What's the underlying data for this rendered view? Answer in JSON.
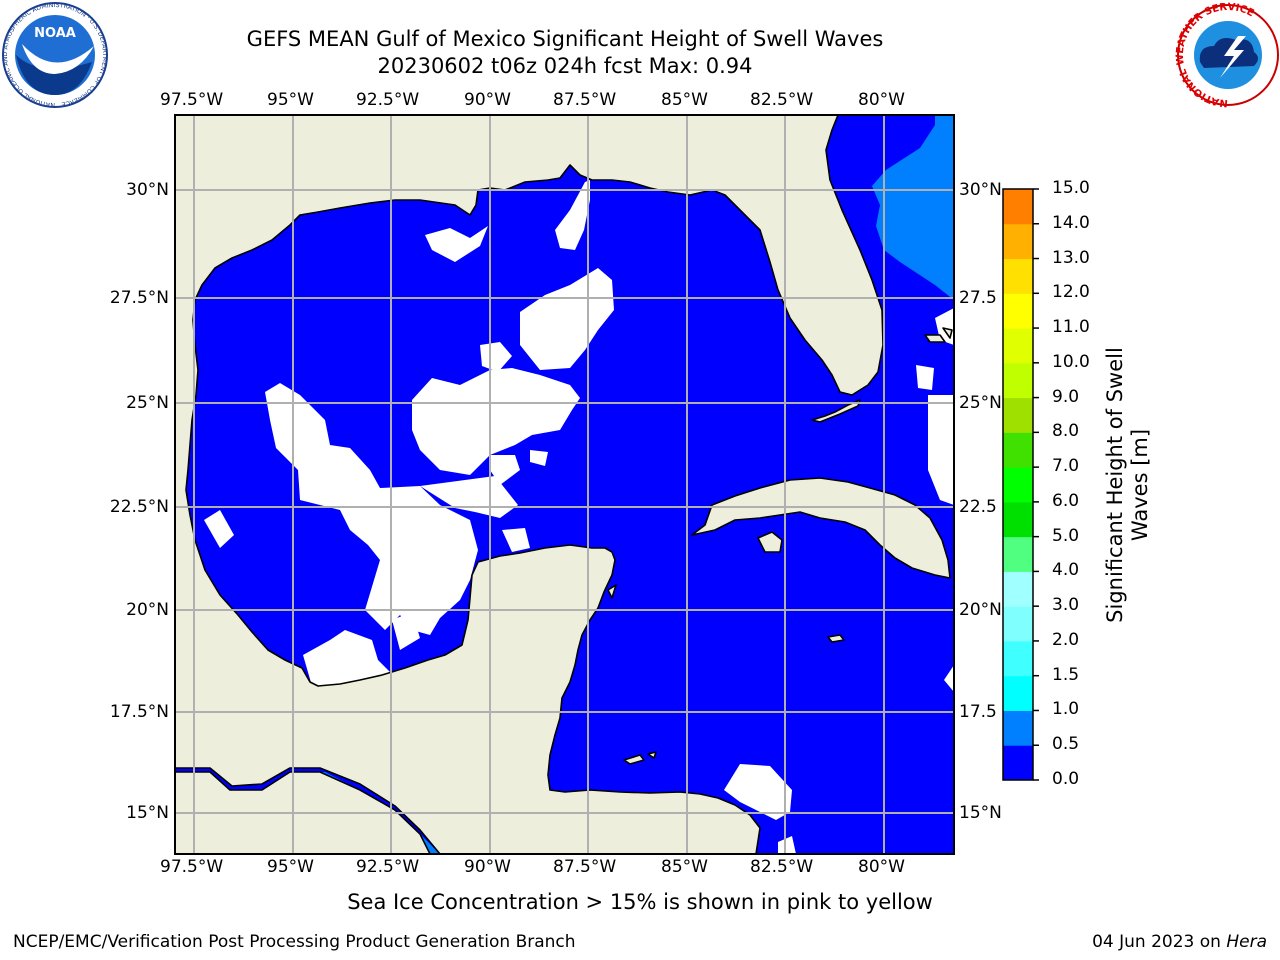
{
  "title": {
    "line1": "GEFS MEAN Gulf of Mexico Significant Height of Swell Waves",
    "line2": "20230602 t06z 024h fcst   Max: 0.94"
  },
  "map": {
    "lon_ticks": [
      "97.5°W",
      "95°W",
      "92.5°W",
      "90°W",
      "87.5°W",
      "85°W",
      "82.5°W",
      "80°W"
    ],
    "lat_ticks_left": [
      "30°N",
      "27.5°N",
      "25°N",
      "22.5°N",
      "20°N",
      "17.5°N",
      "15°N"
    ],
    "lat_ticks_right": [
      "30°N",
      "27.5",
      "25°N",
      "22.5",
      "20°N",
      "17.5",
      "15°N"
    ],
    "land_color": "#eeeedc",
    "water_color": "#0000ff",
    "swell_color_05_10": "#0080ff",
    "no_data_color": "#ffffff"
  },
  "colorbar": {
    "label": "Significant Height of Swell Waves [m]",
    "ticks": [
      "15.0",
      "14.0",
      "13.0",
      "12.0",
      "11.0",
      "10.0",
      "9.0",
      "8.0",
      "7.0",
      "6.0",
      "5.0",
      "4.0",
      "3.0",
      "2.0",
      "1.5",
      "1.0",
      "0.5",
      "0.0"
    ],
    "colors": [
      "#0000ff",
      "#0080ff",
      "#00ffff",
      "#40ffff",
      "#80ffff",
      "#a0ffff",
      "#50ff80",
      "#00e000",
      "#00ff00",
      "#40e000",
      "#a0e000",
      "#c0ff00",
      "#e0ff00",
      "#ffff00",
      "#ffe000",
      "#ffb000",
      "#ff8000",
      "#ff5000",
      "#ff2000",
      "#ff0000"
    ]
  },
  "footer": {
    "note": "Sea Ice Concentration > 15% is shown in pink to yellow",
    "left": "NCEP/EMC/Verification Post Processing Product Generation Branch",
    "right_date": "04 Jun 2023 on ",
    "right_host": "Hera"
  },
  "logos": {
    "noaa_text": "NOAA",
    "noaa_ring_text": "NATIONAL OCEANIC AND ATMOSPHERIC ADMINISTRATION · U.S. DEPARTMENT OF COMMERCE",
    "nws_ring_text": "NATIONAL WEATHER SERVICE"
  }
}
